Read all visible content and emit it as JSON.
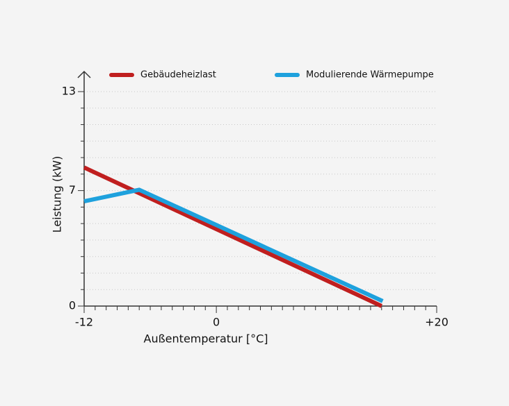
{
  "chart_data": {
    "type": "line",
    "x_label": "Außentemperatur [°C]",
    "y_label": "Leistung (kW)",
    "xlim": [
      -12,
      20
    ],
    "ylim": [
      0,
      13
    ],
    "xticks": [
      -12,
      0,
      {
        "value": 20,
        "label": "+20"
      }
    ],
    "yticks": [
      0,
      7,
      13
    ],
    "xminorticks": [
      -11,
      -10,
      -9,
      -8,
      -7,
      -6,
      -5,
      -4,
      -3,
      -2,
      -1,
      1,
      2,
      3,
      4,
      5,
      6,
      7,
      8,
      9,
      10,
      11,
      12,
      13,
      14,
      15,
      16,
      17,
      18,
      19
    ],
    "yminorticks": [
      1,
      2,
      3,
      4,
      5,
      6,
      8,
      9,
      10,
      11,
      12
    ],
    "grid": true,
    "series": [
      {
        "name": "Gebäudeheizlast",
        "color": "#c01f1f",
        "x": [
          -12,
          15
        ],
        "values": [
          8.4,
          0
        ]
      },
      {
        "name": "Modulierende Wärmepumpe",
        "color": "#1ea1dd",
        "x": [
          -12,
          -7,
          15.1
        ],
        "values": [
          6.35,
          7.05,
          0.3
        ]
      }
    ]
  }
}
